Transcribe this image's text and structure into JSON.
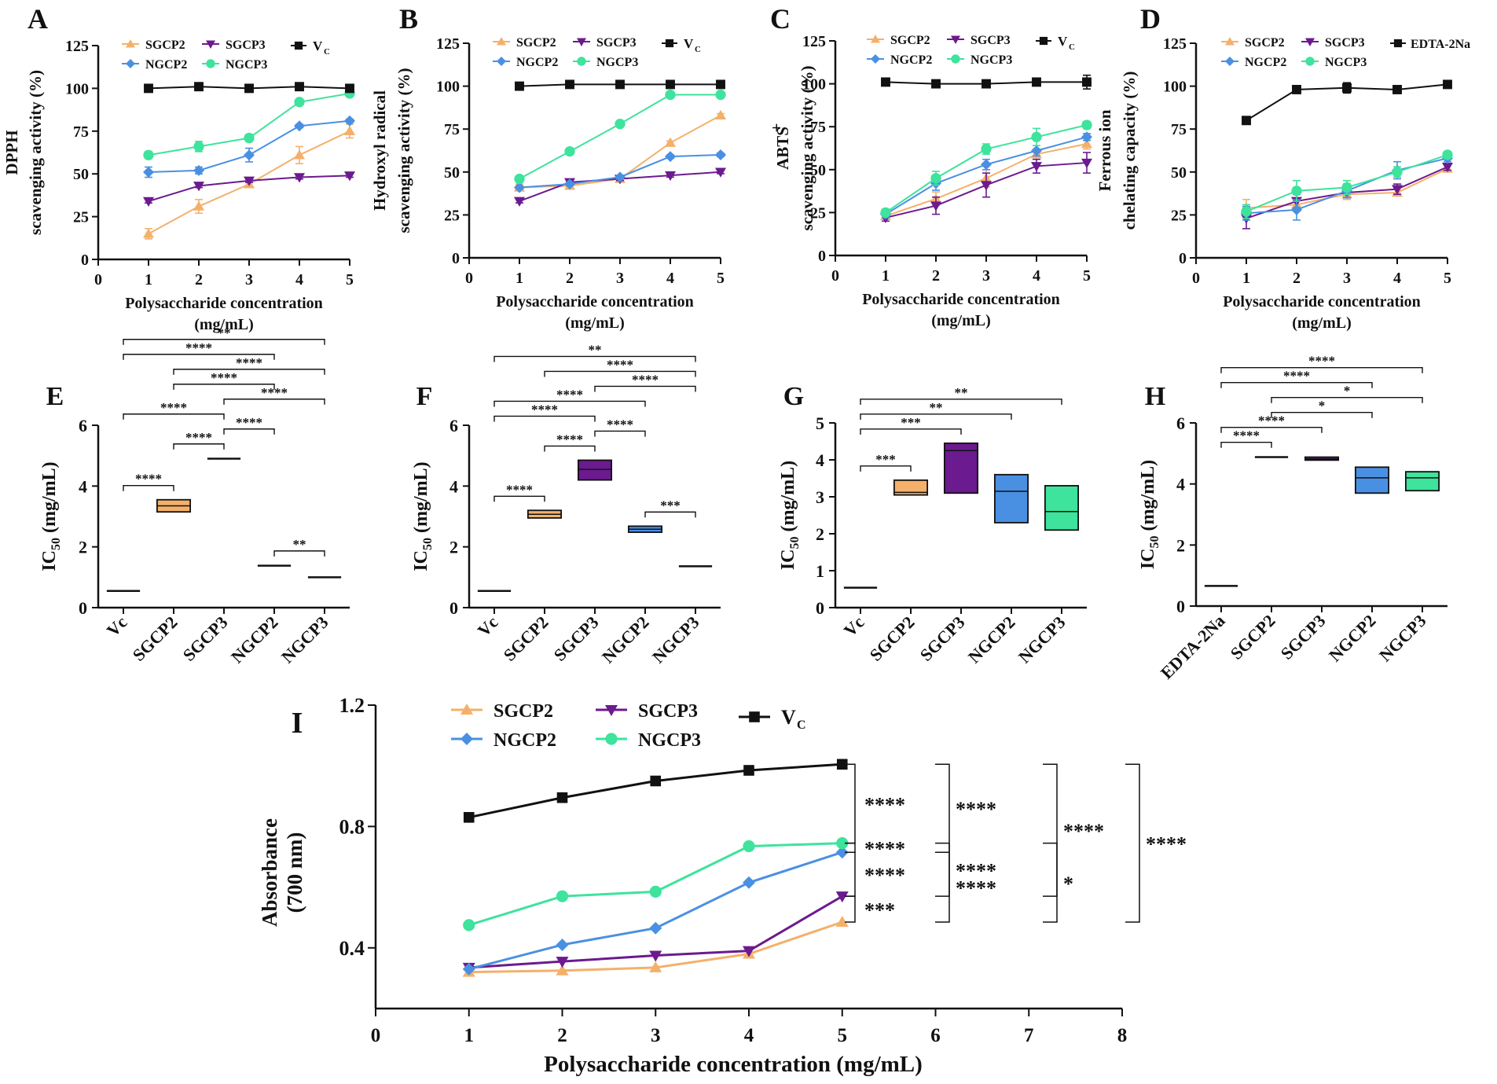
{
  "colors": {
    "SGCP2": "#f4b06a",
    "SGCP3": "#6c1a8f",
    "NGCP2": "#4a90e2",
    "NGCP3": "#3ee39c",
    "Vc": "#111111",
    "axis": "#111111"
  },
  "chart_data": [
    {
      "panel": "A",
      "type": "line",
      "x": [
        1,
        2,
        3,
        4,
        5
      ],
      "xlim": [
        0,
        5
      ],
      "ylim": [
        0,
        125
      ],
      "yticks": [
        0,
        25,
        50,
        75,
        100,
        125
      ],
      "xlabel": "Polysaccharide concentration",
      "xlabel2": "(mg/mL)",
      "ylabel": "DPPH",
      "ylabel2": "scavenging activity (%)",
      "series": [
        {
          "name": "SGCP2",
          "values": [
            15,
            31,
            44,
            61,
            75
          ],
          "err": [
            3,
            4,
            2,
            5,
            4
          ]
        },
        {
          "name": "SGCP3",
          "values": [
            34,
            43,
            46,
            48,
            49
          ],
          "err": [
            1,
            1,
            1,
            1,
            1
          ]
        },
        {
          "name": "NGCP2",
          "values": [
            51,
            52,
            61,
            78,
            81
          ],
          "err": [
            3,
            2,
            4,
            1,
            1
          ]
        },
        {
          "name": "NGCP3",
          "values": [
            61,
            66,
            71,
            92,
            97
          ],
          "err": [
            2,
            3,
            2,
            1,
            1
          ]
        },
        {
          "name": "Vc",
          "values": [
            100,
            101,
            100,
            101,
            100
          ],
          "err": [
            1,
            1,
            1,
            1,
            1
          ]
        }
      ],
      "legend": {
        "labels": [
          "SGCP2",
          "SGCP3",
          "NGCP2",
          "NGCP3",
          "V",
          "C"
        ]
      }
    },
    {
      "panel": "B",
      "type": "line",
      "x": [
        1,
        2,
        3,
        4,
        5
      ],
      "xlim": [
        0,
        5
      ],
      "ylim": [
        0,
        125
      ],
      "yticks": [
        0,
        25,
        50,
        75,
        100,
        125
      ],
      "xlabel": "Polysaccharide concentration",
      "xlabel2": "(mg/mL)",
      "ylabel": "Hydroxyl radical",
      "ylabel2": "scavenging activity (%)",
      "series": [
        {
          "name": "SGCP2",
          "values": [
            41,
            42,
            46,
            67,
            83
          ],
          "err": [
            2,
            2,
            1,
            1,
            1
          ]
        },
        {
          "name": "SGCP3",
          "values": [
            33,
            44,
            46,
            48,
            50
          ],
          "err": [
            1,
            1,
            1,
            1,
            1
          ]
        },
        {
          "name": "NGCP2",
          "values": [
            41,
            43,
            47,
            59,
            60
          ],
          "err": [
            1,
            1,
            1,
            1,
            1
          ]
        },
        {
          "name": "NGCP3",
          "values": [
            46,
            62,
            78,
            95,
            95
          ],
          "err": [
            1,
            1,
            1,
            1,
            1
          ]
        },
        {
          "name": "Vc",
          "values": [
            100,
            101,
            101,
            101,
            101
          ],
          "err": [
            1,
            1,
            1,
            1,
            1
          ]
        }
      ],
      "legend": {
        "labels": [
          "SGCP2",
          "SGCP3",
          "NGCP2",
          "NGCP3",
          "V",
          "C"
        ]
      }
    },
    {
      "panel": "C",
      "type": "line",
      "x": [
        1,
        2,
        3,
        4,
        5
      ],
      "xlim": [
        0,
        5
      ],
      "ylim": [
        0,
        125
      ],
      "yticks": [
        0,
        25,
        50,
        75,
        100,
        125
      ],
      "xlabel": "Polysaccharide concentration",
      "xlabel2": "(mg/mL)",
      "ylabel": "ABTS",
      "ylabel_sup": "+",
      "ylabel2": "scavenging activity (%)",
      "series": [
        {
          "name": "SGCP2",
          "values": [
            23,
            33,
            45,
            59,
            65
          ],
          "err": [
            2,
            4,
            5,
            3,
            3
          ]
        },
        {
          "name": "SGCP3",
          "values": [
            22,
            29,
            41,
            52,
            54
          ],
          "err": [
            2,
            5,
            7,
            4,
            6
          ]
        },
        {
          "name": "NGCP2",
          "values": [
            24,
            42,
            53,
            61,
            69
          ],
          "err": [
            2,
            4,
            3,
            3,
            2
          ]
        },
        {
          "name": "NGCP3",
          "values": [
            25,
            45,
            62,
            69,
            76
          ],
          "err": [
            2,
            4,
            3,
            5,
            2
          ]
        },
        {
          "name": "Vc",
          "values": [
            101,
            100,
            100,
            101,
            101
          ],
          "err": [
            1,
            1,
            1,
            2,
            4
          ]
        }
      ],
      "legend": {
        "labels": [
          "SGCP2",
          "SGCP3",
          "NGCP2",
          "NGCP3",
          "V",
          "C"
        ]
      }
    },
    {
      "panel": "D",
      "type": "line",
      "x": [
        1,
        2,
        3,
        4,
        5
      ],
      "xlim": [
        0,
        5
      ],
      "ylim": [
        0,
        125
      ],
      "yticks": [
        0,
        25,
        50,
        75,
        100,
        125
      ],
      "xlabel": "Polysaccharide concentration",
      "xlabel2": "(mg/mL)",
      "ylabel": "Ferrous ion",
      "ylabel2": "chelating capacity (%)",
      "series": [
        {
          "name": "SGCP2",
          "values": [
            29,
            31,
            37,
            38,
            52
          ],
          "err": [
            5,
            4,
            3,
            2,
            2
          ]
        },
        {
          "name": "SGCP3",
          "values": [
            23,
            33,
            38,
            40,
            53
          ],
          "err": [
            6,
            4,
            3,
            3,
            2
          ]
        },
        {
          "name": "NGCP2",
          "values": [
            26,
            28,
            39,
            51,
            58
          ],
          "err": [
            4,
            6,
            4,
            5,
            2
          ]
        },
        {
          "name": "NGCP3",
          "values": [
            27,
            39,
            41,
            50,
            60
          ],
          "err": [
            4,
            6,
            4,
            3,
            2
          ]
        },
        {
          "name": "Vc",
          "values": [
            80,
            98,
            99,
            98,
            101
          ],
          "err": [
            1,
            2,
            3,
            2,
            1
          ]
        }
      ],
      "legend": {
        "labels": [
          "SGCP2",
          "SGCP3",
          "NGCP2",
          "NGCP3",
          "EDTA-2Na"
        ]
      }
    },
    {
      "panel": "E",
      "type": "box",
      "categories": [
        "Vc",
        "SGCP2",
        "SGCP3",
        "NGCP2",
        "NGCP3"
      ],
      "ylim": [
        0,
        6
      ],
      "yticks": [
        0,
        2,
        4,
        6
      ],
      "ylabel": "IC",
      "ylabel_sub": "50",
      "ylabel_unit": " (mg/mL)",
      "boxes": [
        {
          "lo": 0.55,
          "hi": 0.55,
          "mid": 0.55
        },
        {
          "lo": 3.15,
          "hi": 3.55,
          "mid": 3.35
        },
        {
          "lo": 4.88,
          "hi": 4.92,
          "mid": 4.9
        },
        {
          "lo": 1.35,
          "hi": 1.4,
          "mid": 1.38
        },
        {
          "lo": 0.98,
          "hi": 1.02,
          "mid": 1.0
        }
      ],
      "comparisons": [
        {
          "a": 0,
          "b": 1,
          "label": "****"
        },
        {
          "a": 3,
          "b": 4,
          "label": "**"
        },
        {
          "a": 1,
          "b": 2,
          "label": "****"
        },
        {
          "a": 2,
          "b": 3,
          "label": "****"
        },
        {
          "a": 0,
          "b": 2,
          "label": "****"
        },
        {
          "a": 2,
          "b": 4,
          "label": "****"
        },
        {
          "a": 1,
          "b": 3,
          "label": "****"
        },
        {
          "a": 1,
          "b": 4,
          "label": "****"
        },
        {
          "a": 0,
          "b": 3,
          "label": "****"
        },
        {
          "a": 0,
          "b": 4,
          "label": "**"
        }
      ]
    },
    {
      "panel": "F",
      "type": "box",
      "categories": [
        "Vc",
        "SGCP2",
        "SGCP3",
        "NGCP2",
        "NGCP3"
      ],
      "ylim": [
        0,
        6
      ],
      "yticks": [
        0,
        2,
        4,
        6
      ],
      "ylabel": "IC",
      "ylabel_sub": "50",
      "ylabel_unit": " (mg/mL)",
      "boxes": [
        {
          "lo": 0.55,
          "hi": 0.55,
          "mid": 0.55
        },
        {
          "lo": 2.95,
          "hi": 3.2,
          "mid": 3.07
        },
        {
          "lo": 4.2,
          "hi": 4.85,
          "mid": 4.55
        },
        {
          "lo": 2.48,
          "hi": 2.68,
          "mid": 2.58
        },
        {
          "lo": 1.35,
          "hi": 1.38,
          "mid": 1.36
        }
      ],
      "comparisons": [
        {
          "a": 0,
          "b": 1,
          "label": "****"
        },
        {
          "a": 3,
          "b": 4,
          "label": "***"
        },
        {
          "a": 1,
          "b": 2,
          "label": "****"
        },
        {
          "a": 2,
          "b": 3,
          "label": "****"
        },
        {
          "a": 0,
          "b": 2,
          "label": "****"
        },
        {
          "a": 0,
          "b": 3,
          "label": "****"
        },
        {
          "a": 2,
          "b": 4,
          "label": "****"
        },
        {
          "a": 1,
          "b": 4,
          "label": "****"
        },
        {
          "a": 0,
          "b": 4,
          "label": "**"
        }
      ]
    },
    {
      "panel": "G",
      "type": "box",
      "categories": [
        "Vc",
        "SGCP2",
        "SGCP3",
        "NGCP2",
        "NGCP3"
      ],
      "ylim": [
        0,
        5
      ],
      "yticks": [
        0,
        1,
        2,
        3,
        4,
        5
      ],
      "ylabel": "IC",
      "ylabel_sub": "50",
      "ylabel_unit": " (mg/mL)",
      "boxes": [
        {
          "lo": 0.53,
          "hi": 0.55,
          "mid": 0.54
        },
        {
          "lo": 3.05,
          "hi": 3.45,
          "mid": 3.12
        },
        {
          "lo": 3.1,
          "hi": 4.45,
          "mid": 4.25
        },
        {
          "lo": 2.3,
          "hi": 3.6,
          "mid": 3.15
        },
        {
          "lo": 2.1,
          "hi": 3.3,
          "mid": 2.6
        }
      ],
      "comparisons": [
        {
          "a": 0,
          "b": 1,
          "label": "***"
        },
        {
          "a": 0,
          "b": 2,
          "label": "***"
        },
        {
          "a": 0,
          "b": 3,
          "label": "**"
        },
        {
          "a": 0,
          "b": 4,
          "label": "**"
        }
      ]
    },
    {
      "panel": "H",
      "type": "box",
      "categories": [
        "EDTA-2Na",
        "SGCP2",
        "SGCP3",
        "NGCP2",
        "NGCP3"
      ],
      "ylim": [
        0,
        6
      ],
      "yticks": [
        0,
        2,
        4,
        6
      ],
      "ylabel": "IC",
      "ylabel_sub": "50",
      "ylabel_unit": " (mg/mL)",
      "boxes": [
        {
          "lo": 0.65,
          "hi": 0.67,
          "mid": 0.66
        },
        {
          "lo": 4.87,
          "hi": 4.9,
          "mid": 4.88
        },
        {
          "lo": 4.78,
          "hi": 4.88,
          "mid": 4.82
        },
        {
          "lo": 3.7,
          "hi": 4.55,
          "mid": 4.2
        },
        {
          "lo": 3.78,
          "hi": 4.4,
          "mid": 4.2
        }
      ],
      "comparisons": [
        {
          "a": 0,
          "b": 1,
          "label": "****"
        },
        {
          "a": 0,
          "b": 2,
          "label": "****"
        },
        {
          "a": 1,
          "b": 3,
          "label": "*"
        },
        {
          "a": 1,
          "b": 4,
          "label": "*"
        },
        {
          "a": 0,
          "b": 3,
          "label": "****"
        },
        {
          "a": 0,
          "b": 4,
          "label": "****"
        }
      ]
    },
    {
      "panel": "I",
      "type": "line",
      "x": [
        1,
        2,
        3,
        4,
        5
      ],
      "xlim": [
        0,
        8
      ],
      "xticks": [
        0,
        1,
        2,
        3,
        4,
        5,
        6,
        7,
        8
      ],
      "ylim": [
        0.2,
        1.2
      ],
      "yticks": [
        0.4,
        0.8,
        1.2
      ],
      "xlabel": "Polysaccharide concentration (mg/mL)",
      "ylabel": "Absorbance",
      "ylabel2": "(700 nm)",
      "series": [
        {
          "name": "SGCP2",
          "values": [
            0.32,
            0.325,
            0.335,
            0.38,
            0.485
          ]
        },
        {
          "name": "SGCP3",
          "values": [
            0.335,
            0.355,
            0.375,
            0.39,
            0.57
          ]
        },
        {
          "name": "NGCP2",
          "values": [
            0.33,
            0.41,
            0.465,
            0.615,
            0.715
          ]
        },
        {
          "name": "NGCP3",
          "values": [
            0.475,
            0.57,
            0.585,
            0.735,
            0.745
          ]
        },
        {
          "name": "Vc",
          "values": [
            0.83,
            0.895,
            0.95,
            0.985,
            1.005
          ]
        }
      ],
      "legend": {
        "labels": [
          "SGCP2",
          "SGCP3",
          "NGCP2",
          "NGCP3",
          "V",
          "C"
        ]
      },
      "brackets": [
        {
          "y1": 1.005,
          "y2": 0.745,
          "col": 0,
          "label": "****"
        },
        {
          "y1": 0.745,
          "y2": 0.715,
          "col": 0,
          "label": "****"
        },
        {
          "y1": 0.715,
          "y2": 0.57,
          "col": 0,
          "label": "****"
        },
        {
          "y1": 0.57,
          "y2": 0.485,
          "col": 0,
          "label": "***"
        },
        {
          "y1": 1.005,
          "y2": 0.715,
          "col": 1,
          "label": "****"
        },
        {
          "y1": 0.745,
          "y2": 0.57,
          "col": 1,
          "label": "****"
        },
        {
          "y1": 0.715,
          "y2": 0.485,
          "col": 1,
          "label": "****"
        },
        {
          "y1": 1.005,
          "y2": 0.57,
          "col": 2,
          "label": "****"
        },
        {
          "y1": 0.745,
          "y2": 0.485,
          "col": 2,
          "label": "*"
        },
        {
          "y1": 1.005,
          "y2": 0.485,
          "col": 3,
          "label": "****"
        }
      ]
    }
  ]
}
